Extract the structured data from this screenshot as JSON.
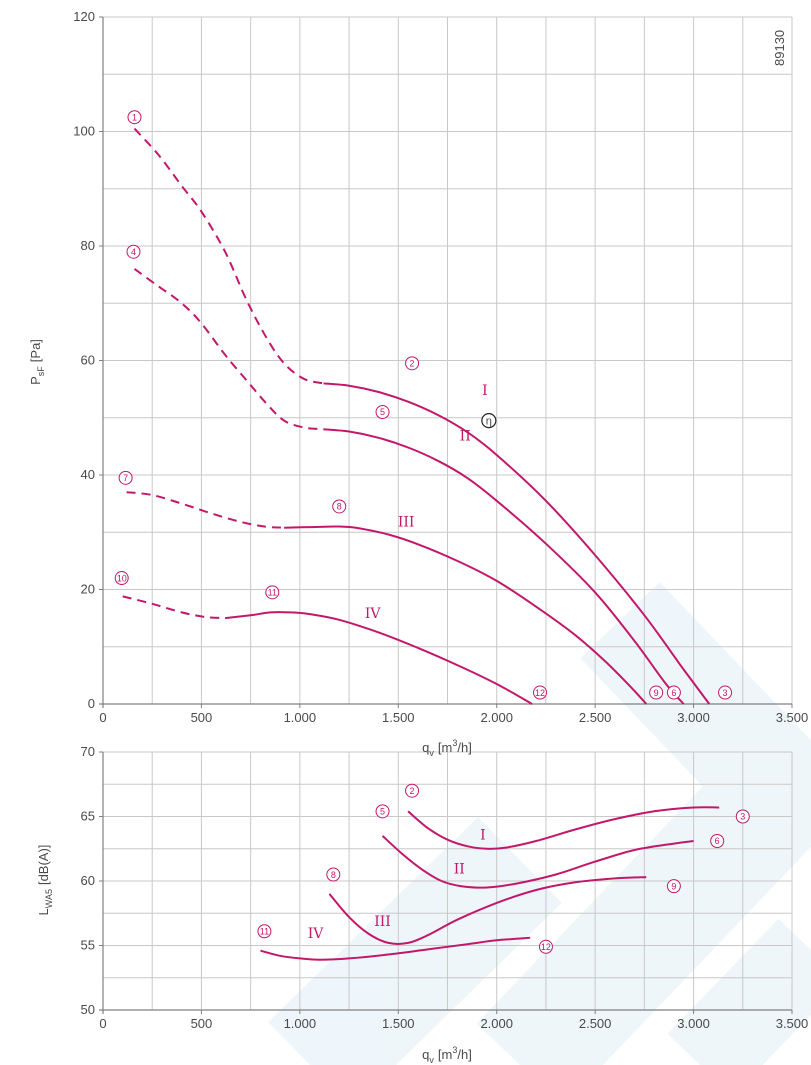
{
  "colors": {
    "curve": "#c2186b",
    "grid": "#c8c8c8",
    "axis": "#808080",
    "text": "#4a4a4a",
    "watermark": "#4d9fd1"
  },
  "chart_data": [
    {
      "type": "line",
      "ylabel": "P",
      "ylabel_sub": "sF",
      "ylabel_unit": "[Pa]",
      "xlabel": "q",
      "xlabel_sub": "v",
      "xlabel_unit": "[m",
      "xlabel_sup": "3",
      "xlabel_end": "/h]",
      "xlim": [
        0,
        3500
      ],
      "ylim": [
        0,
        120
      ],
      "grid": true,
      "x_ticks": [
        {
          "value": 0,
          "label": "0"
        },
        {
          "value": 500,
          "label": "500"
        },
        {
          "value": 1000,
          "label": "1.000"
        },
        {
          "value": 1500,
          "label": "1.500"
        },
        {
          "value": 2000,
          "label": "2.000"
        },
        {
          "value": 2500,
          "label": "2.500"
        },
        {
          "value": 3000,
          "label": "3.000"
        },
        {
          "value": 3500,
          "label": "3.500"
        }
      ],
      "y_ticks": [
        {
          "value": 0,
          "label": "0"
        },
        {
          "value": 20,
          "label": "20"
        },
        {
          "value": 40,
          "label": "40"
        },
        {
          "value": 60,
          "label": "60"
        },
        {
          "value": 80,
          "label": "80"
        },
        {
          "value": 100,
          "label": "100"
        },
        {
          "value": 120,
          "label": "120"
        }
      ],
      "code": "89130",
      "series": [
        {
          "name": "I",
          "label_at": [
            1940,
            54
          ],
          "dashed": [
            [
              160,
              100.5
            ],
            [
              280,
              96
            ],
            [
              400,
              90.5
            ],
            [
              500,
              86
            ],
            [
              620,
              79
            ],
            [
              730,
              70.5
            ],
            [
              830,
              64
            ],
            [
              920,
              59.5
            ],
            [
              1020,
              56.8
            ],
            [
              1120,
              56
            ]
          ],
          "solid": [
            [
              1120,
              56
            ],
            [
              1250,
              55.6
            ],
            [
              1400,
              54.5
            ],
            [
              1550,
              52.8
            ],
            [
              1700,
              50.5
            ],
            [
              1850,
              47.5
            ],
            [
              2000,
              43.5
            ],
            [
              2250,
              35.5
            ],
            [
              2500,
              26
            ],
            [
              2750,
              15.5
            ],
            [
              2950,
              6
            ],
            [
              3080,
              0
            ]
          ]
        },
        {
          "name": "II",
          "label_at": [
            1840,
            46
          ],
          "dashed": [
            [
              160,
              76
            ],
            [
              280,
              73
            ],
            [
              400,
              70
            ],
            [
              500,
              66.5
            ],
            [
              620,
              61
            ],
            [
              730,
              56.5
            ],
            [
              830,
              52.5
            ],
            [
              920,
              49.5
            ],
            [
              1020,
              48.3
            ],
            [
              1120,
              48
            ]
          ],
          "solid": [
            [
              1120,
              48
            ],
            [
              1250,
              47.6
            ],
            [
              1400,
              46.5
            ],
            [
              1550,
              44.8
            ],
            [
              1700,
              42.5
            ],
            [
              1850,
              39.5
            ],
            [
              2000,
              35.5
            ],
            [
              2250,
              28
            ],
            [
              2500,
              19.5
            ],
            [
              2700,
              11
            ],
            [
              2860,
              3.5
            ],
            [
              2950,
              0
            ]
          ]
        },
        {
          "name": "III",
          "label_at": [
            1540,
            31
          ],
          "dashed": [
            [
              120,
              37
            ],
            [
              250,
              36.5
            ],
            [
              400,
              35
            ],
            [
              550,
              33.3
            ],
            [
              700,
              31.8
            ],
            [
              820,
              31
            ],
            [
              920,
              30.8
            ]
          ],
          "solid": [
            [
              920,
              30.8
            ],
            [
              1050,
              30.9
            ],
            [
              1200,
              31
            ],
            [
              1300,
              30.7
            ],
            [
              1450,
              29.6
            ],
            [
              1600,
              27.9
            ],
            [
              1800,
              25
            ],
            [
              2000,
              21.5
            ],
            [
              2200,
              17
            ],
            [
              2400,
              12
            ],
            [
              2550,
              7.5
            ],
            [
              2680,
              3
            ],
            [
              2760,
              0
            ]
          ]
        },
        {
          "name": "IV",
          "label_at": [
            1370,
            15
          ],
          "dashed": [
            [
              100,
              18.8
            ],
            [
              250,
              17.5
            ],
            [
              400,
              16
            ],
            [
              520,
              15.2
            ],
            [
              620,
              15
            ]
          ],
          "solid": [
            [
              620,
              15
            ],
            [
              750,
              15.5
            ],
            [
              850,
              16
            ],
            [
              950,
              16
            ],
            [
              1050,
              15.7
            ],
            [
              1200,
              14.7
            ],
            [
              1400,
              12.5
            ],
            [
              1600,
              9.8
            ],
            [
              1800,
              6.8
            ],
            [
              2000,
              3.5
            ],
            [
              2180,
              0
            ]
          ]
        }
      ],
      "markers": [
        {
          "label": "1",
          "x": 160,
          "y": 102.5
        },
        {
          "label": "2",
          "x": 1570,
          "y": 59.5
        },
        {
          "label": "3",
          "x": 3160,
          "y": 2
        },
        {
          "label": "4",
          "x": 155,
          "y": 79
        },
        {
          "label": "5",
          "x": 1420,
          "y": 51
        },
        {
          "label": "6",
          "x": 2900,
          "y": 2
        },
        {
          "label": "7",
          "x": 115,
          "y": 39.5
        },
        {
          "label": "8",
          "x": 1200,
          "y": 34.5
        },
        {
          "label": "9",
          "x": 2810,
          "y": 2
        },
        {
          "label": "10",
          "x": 95,
          "y": 22
        },
        {
          "label": "11",
          "x": 860,
          "y": 19.5
        },
        {
          "label": "12",
          "x": 2220,
          "y": 2
        }
      ],
      "efficiency_point": {
        "label": "η",
        "x": 1960,
        "y": 49.5
      }
    },
    {
      "type": "line",
      "ylabel": "L",
      "ylabel_sub": "WA5",
      "ylabel_unit": "[dB(A)]",
      "xlabel": "q",
      "xlabel_sub": "v",
      "xlabel_unit": "[m",
      "xlabel_sup": "3",
      "xlabel_end": "/h]",
      "xlim": [
        0,
        3500
      ],
      "ylim": [
        50,
        70
      ],
      "grid": true,
      "x_ticks": [
        {
          "value": 0,
          "label": "0"
        },
        {
          "value": 500,
          "label": "500"
        },
        {
          "value": 1000,
          "label": "1.000"
        },
        {
          "value": 1500,
          "label": "1.500"
        },
        {
          "value": 2000,
          "label": "2.000"
        },
        {
          "value": 2500,
          "label": "2.500"
        },
        {
          "value": 3000,
          "label": "3.000"
        },
        {
          "value": 3500,
          "label": "3.500"
        }
      ],
      "y_ticks": [
        {
          "value": 50,
          "label": "50"
        },
        {
          "value": 55,
          "label": "55"
        },
        {
          "value": 60,
          "label": "60"
        },
        {
          "value": 65,
          "label": "65"
        },
        {
          "value": 70,
          "label": "70"
        }
      ],
      "series": [
        {
          "name": "I",
          "label_at": [
            1930,
            63.2
          ],
          "solid": [
            [
              1550,
              65.4
            ],
            [
              1650,
              64.1
            ],
            [
              1750,
              63.2
            ],
            [
              1850,
              62.7
            ],
            [
              1950,
              62.5
            ],
            [
              2050,
              62.6
            ],
            [
              2200,
              63.1
            ],
            [
              2400,
              64
            ],
            [
              2600,
              64.8
            ],
            [
              2800,
              65.4
            ],
            [
              3000,
              65.7
            ],
            [
              3130,
              65.7
            ]
          ]
        },
        {
          "name": "II",
          "label_at": [
            1810,
            60.6
          ],
          "solid": [
            [
              1420,
              63.5
            ],
            [
              1520,
              62.1
            ],
            [
              1620,
              60.9
            ],
            [
              1720,
              60
            ],
            [
              1820,
              59.6
            ],
            [
              1950,
              59.5
            ],
            [
              2100,
              59.8
            ],
            [
              2300,
              60.5
            ],
            [
              2500,
              61.5
            ],
            [
              2700,
              62.4
            ],
            [
              2900,
              62.9
            ],
            [
              3000,
              63.1
            ]
          ]
        },
        {
          "name": "III",
          "label_at": [
            1420,
            56.5
          ],
          "solid": [
            [
              1150,
              59
            ],
            [
              1250,
              57.2
            ],
            [
              1350,
              55.9
            ],
            [
              1450,
              55.2
            ],
            [
              1550,
              55.2
            ],
            [
              1650,
              55.8
            ],
            [
              1800,
              57
            ],
            [
              2000,
              58.3
            ],
            [
              2200,
              59.3
            ],
            [
              2400,
              59.9
            ],
            [
              2600,
              60.2
            ],
            [
              2760,
              60.3
            ]
          ]
        },
        {
          "name": "IV",
          "label_at": [
            1080,
            55.6
          ],
          "solid": [
            [
              800,
              54.6
            ],
            [
              900,
              54.2
            ],
            [
              1000,
              54
            ],
            [
              1100,
              53.9
            ],
            [
              1250,
              54
            ],
            [
              1450,
              54.3
            ],
            [
              1650,
              54.7
            ],
            [
              1850,
              55.1
            ],
            [
              2000,
              55.4
            ],
            [
              2170,
              55.6
            ]
          ]
        }
      ],
      "markers": [
        {
          "label": "2",
          "x": 1570,
          "y": 67
        },
        {
          "label": "3",
          "x": 3250,
          "y": 65
        },
        {
          "label": "5",
          "x": 1420,
          "y": 65.4
        },
        {
          "label": "6",
          "x": 3120,
          "y": 63.1
        },
        {
          "label": "8",
          "x": 1170,
          "y": 60.5
        },
        {
          "label": "9",
          "x": 2900,
          "y": 59.6
        },
        {
          "label": "11",
          "x": 820,
          "y": 56.1
        },
        {
          "label": "12",
          "x": 2250,
          "y": 54.9
        }
      ]
    }
  ]
}
